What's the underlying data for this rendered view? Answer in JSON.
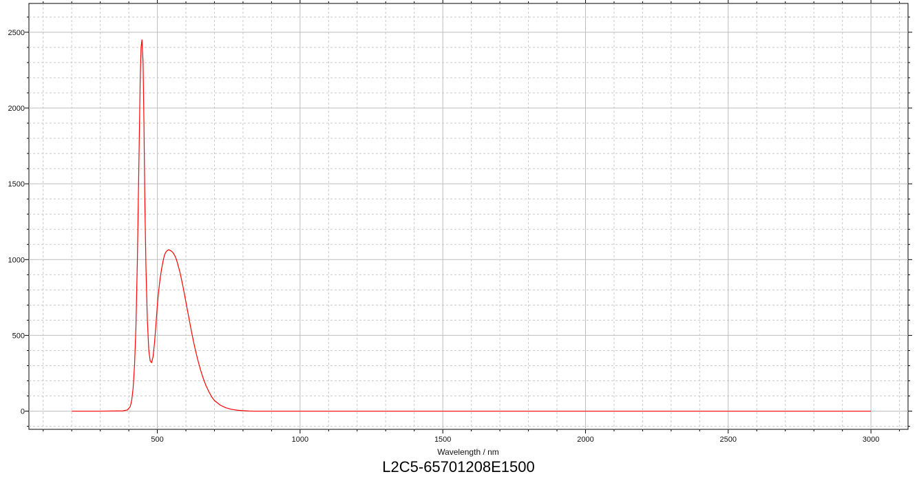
{
  "chart_data": {
    "type": "line",
    "title": "",
    "xlabel": "Wavelength / nm",
    "ylabel": "",
    "caption": "L2C5-65701208E1500",
    "xlim": [
      50,
      3130
    ],
    "ylim": [
      -120,
      2690
    ],
    "xticks": [
      500,
      1000,
      1500,
      2000,
      2500,
      3000
    ],
    "yticks": [
      0,
      500,
      1000,
      1500,
      2000,
      2500
    ],
    "grid": true,
    "legend": "none",
    "series": [
      {
        "color": "#ff0000",
        "x": [
          200,
          300,
          380,
          395,
          405,
          410,
          415,
          420,
          425,
          430,
          435,
          440,
          443,
          446,
          450,
          453,
          456,
          460,
          465,
          470,
          475,
          480,
          485,
          490,
          495,
          500,
          505,
          510,
          515,
          520,
          525,
          530,
          535,
          540,
          545,
          550,
          555,
          560,
          565,
          570,
          580,
          590,
          600,
          610,
          620,
          630,
          640,
          650,
          660,
          670,
          680,
          690,
          700,
          720,
          740,
          760,
          780,
          800,
          820,
          840,
          900,
          1000,
          1500,
          2000,
          2500,
          3000
        ],
        "values": [
          0,
          0,
          2,
          8,
          30,
          70,
          150,
          300,
          560,
          1000,
          1600,
          2200,
          2400,
          2450,
          2300,
          1900,
          1400,
          950,
          600,
          400,
          330,
          320,
          360,
          450,
          570,
          700,
          800,
          880,
          940,
          990,
          1030,
          1050,
          1060,
          1065,
          1060,
          1055,
          1045,
          1030,
          1010,
          980,
          910,
          820,
          720,
          620,
          520,
          430,
          350,
          280,
          220,
          170,
          130,
          95,
          70,
          40,
          22,
          12,
          6,
          3,
          1,
          0,
          0,
          0,
          0,
          0,
          0,
          0
        ]
      }
    ]
  }
}
